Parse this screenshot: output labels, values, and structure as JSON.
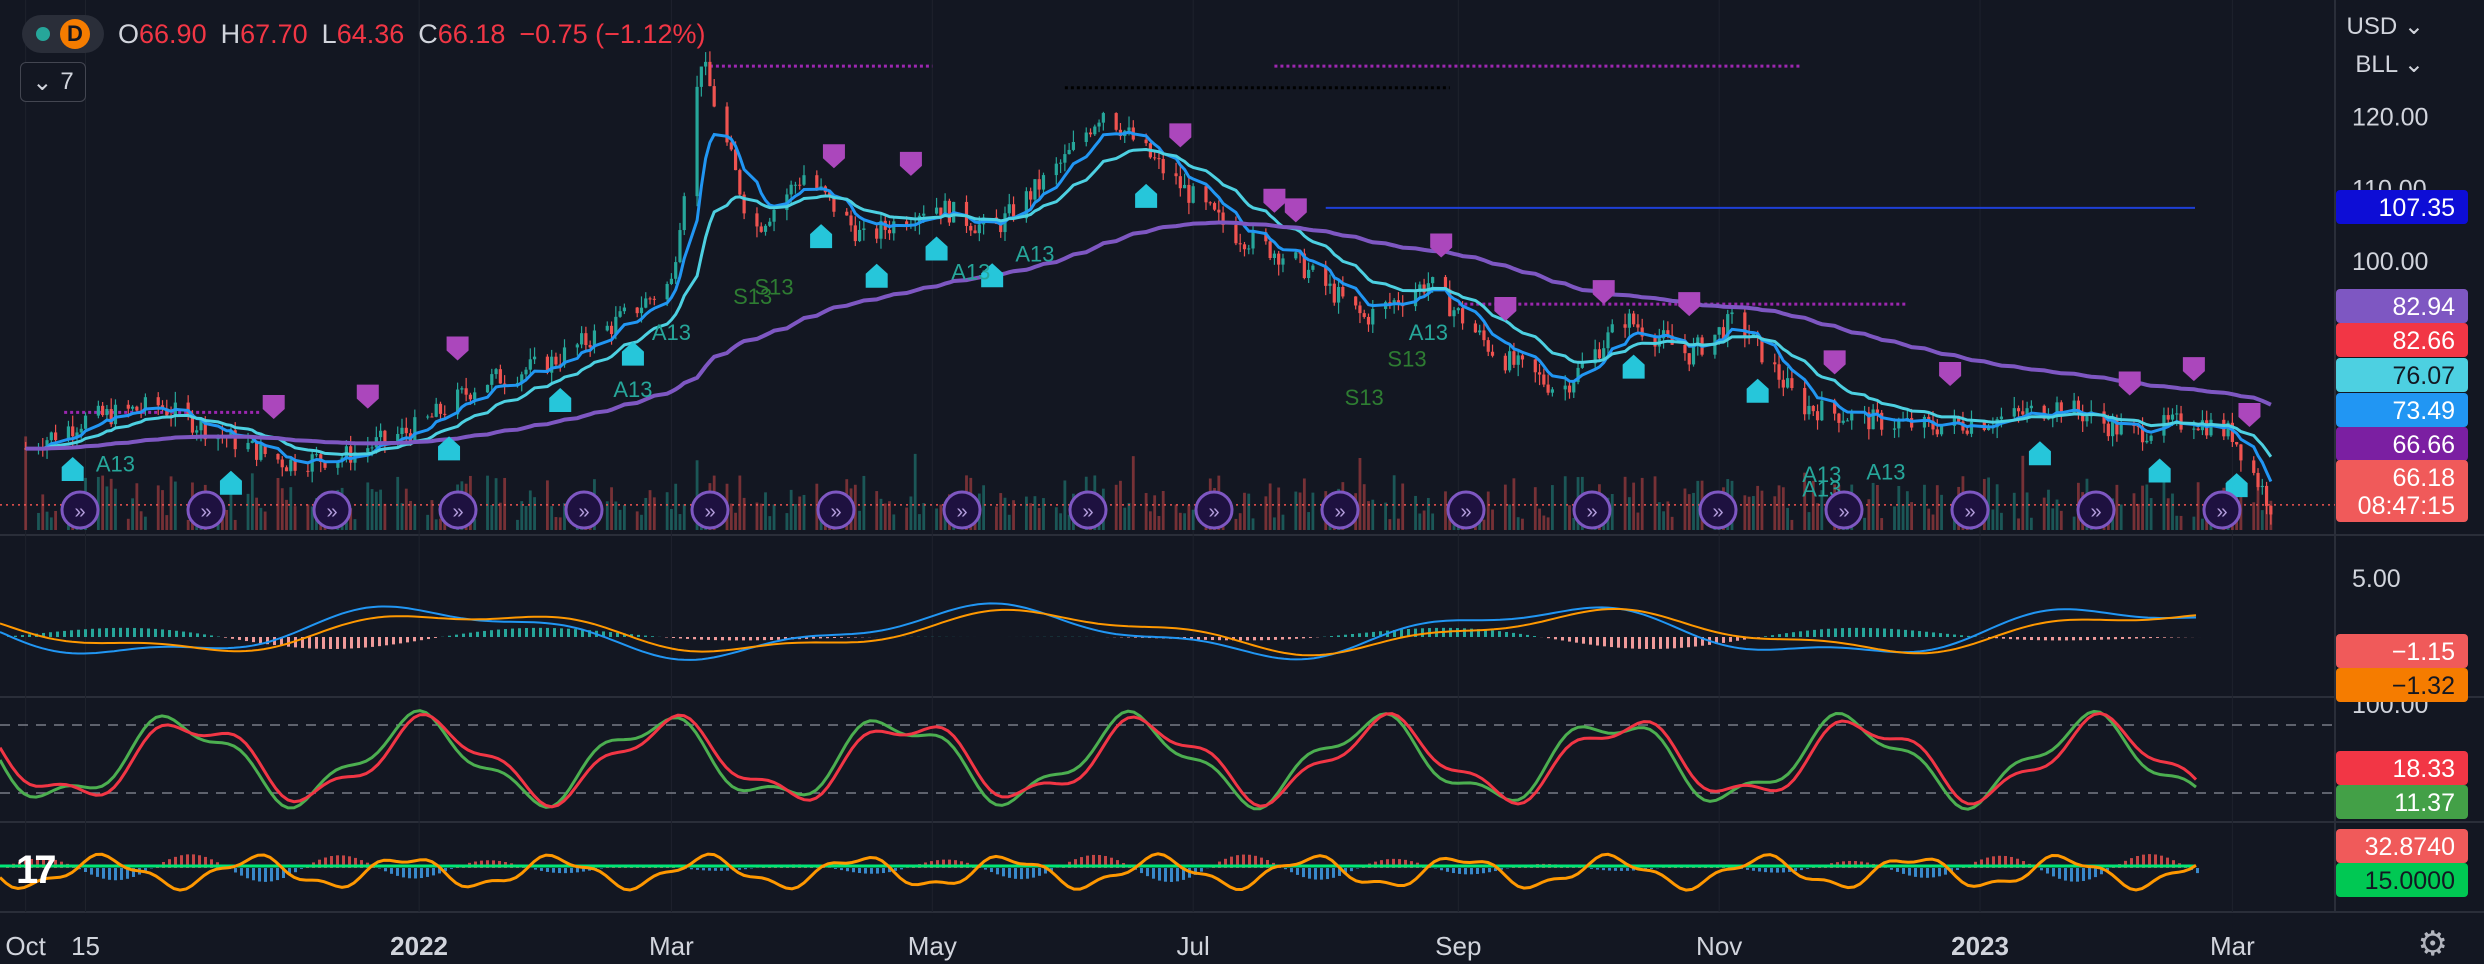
{
  "header": {
    "interval": "D",
    "open_key": "O",
    "open": "66.90",
    "high_key": "H",
    "high": "67.70",
    "low_key": "L",
    "low": "64.36",
    "close_key": "C",
    "close": "66.18",
    "change": "−0.75 (−1.12%)",
    "indicators_count": "7"
  },
  "price_scale": {
    "currency": "USD",
    "symbol": "BLL"
  },
  "colors": {
    "background": "#131722",
    "up": "#26a69a",
    "down": "#ef5350",
    "ema_fast": "#2196f3",
    "ema_mid": "#4dd0e1",
    "ema_slow": "#7e57c2",
    "macd": "#2196f3",
    "signal": "#ff9800",
    "stoch_k": "#4caf50",
    "stoch_d": "#f23645",
    "osc": "#ff9800"
  },
  "chart_data": {
    "type": "candlestick",
    "x_tick_labels": [
      "Oct",
      "15",
      "2022",
      "Mar",
      "May",
      "Jul",
      "Sep",
      "Nov",
      "2023",
      "Mar"
    ],
    "main_pane": {
      "y_ticks": [
        "120.00",
        "110.00",
        "100.00"
      ],
      "ylim": [
        62,
        132
      ],
      "close_series": [
        {
          "x": "2021-10-01",
          "y": 74
        },
        {
          "x": "2021-10-15",
          "y": 78
        },
        {
          "x": "2021-11-01",
          "y": 80
        },
        {
          "x": "2021-11-15",
          "y": 76
        },
        {
          "x": "2021-12-01",
          "y": 72
        },
        {
          "x": "2021-12-15",
          "y": 73
        },
        {
          "x": "2022-01-01",
          "y": 77
        },
        {
          "x": "2022-01-15",
          "y": 83
        },
        {
          "x": "2022-02-01",
          "y": 86
        },
        {
          "x": "2022-02-15",
          "y": 91
        },
        {
          "x": "2022-03-01",
          "y": 97
        },
        {
          "x": "2022-03-08",
          "y": 128
        },
        {
          "x": "2022-03-20",
          "y": 104
        },
        {
          "x": "2022-04-01",
          "y": 112
        },
        {
          "x": "2022-04-15",
          "y": 103
        },
        {
          "x": "2022-05-01",
          "y": 108
        },
        {
          "x": "2022-05-15",
          "y": 104
        },
        {
          "x": "2022-06-01",
          "y": 114
        },
        {
          "x": "2022-06-10",
          "y": 121
        },
        {
          "x": "2022-06-25",
          "y": 112
        },
        {
          "x": "2022-07-10",
          "y": 104
        },
        {
          "x": "2022-07-25",
          "y": 100
        },
        {
          "x": "2022-08-10",
          "y": 92
        },
        {
          "x": "2022-08-25",
          "y": 97
        },
        {
          "x": "2022-09-10",
          "y": 87
        },
        {
          "x": "2022-09-25",
          "y": 82
        },
        {
          "x": "2022-10-10",
          "y": 92
        },
        {
          "x": "2022-10-25",
          "y": 87
        },
        {
          "x": "2022-11-05",
          "y": 92
        },
        {
          "x": "2022-11-20",
          "y": 80
        },
        {
          "x": "2022-12-05",
          "y": 78
        },
        {
          "x": "2022-12-20",
          "y": 77
        },
        {
          "x": "2023-01-05",
          "y": 78
        },
        {
          "x": "2023-01-20",
          "y": 80
        },
        {
          "x": "2023-02-05",
          "y": 76
        },
        {
          "x": "2023-02-20",
          "y": 78
        },
        {
          "x": "2023-03-01",
          "y": 76
        },
        {
          "x": "2023-03-10",
          "y": 66.18
        }
      ],
      "price_labels": [
        "107.35",
        "82.94",
        "82.66",
        "76.07",
        "73.49",
        "66.66",
        "66.18"
      ],
      "countdown": "08:47:15",
      "marker_labels": [
        "A13",
        "S13",
        "A13",
        "A13",
        "A13",
        "S13",
        "A13",
        "A13",
        "S13",
        "A13",
        "S13",
        "A13",
        "A13"
      ]
    },
    "macd_pane": {
      "y_ticks": [
        "5.00"
      ],
      "labels": [
        "−1.15",
        "−1.32"
      ]
    },
    "stoch_pane": {
      "y_ticks": [
        "100.00"
      ],
      "labels": [
        "18.33",
        "11.37"
      ]
    },
    "osc_pane": {
      "labels": [
        "32.8740",
        "15.0000"
      ]
    }
  },
  "logo_text": "17"
}
